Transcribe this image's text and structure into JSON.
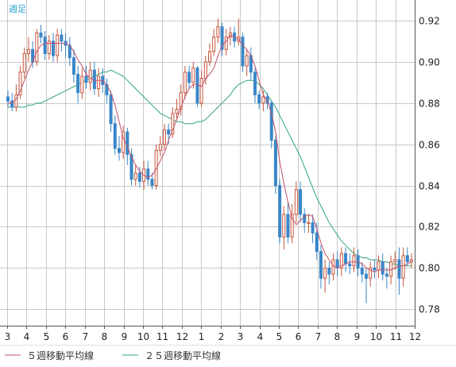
{
  "chart_data": {
    "type": "candlestick",
    "title": "週足",
    "ylim": [
      0.772,
      0.93
    ],
    "yticks": [
      0.92,
      0.9,
      0.88,
      0.86,
      0.84,
      0.82,
      0.8,
      0.78
    ],
    "xticks": [
      "3",
      "4",
      "5",
      "6",
      "7",
      "8",
      "9",
      "10",
      "11",
      "12",
      "1",
      "2",
      "3",
      "4",
      "5",
      "6",
      "7",
      "8",
      "9",
      "10",
      "11",
      "12"
    ],
    "grid": true,
    "legend": "bottom-left",
    "colors": {
      "up": "#c8553d",
      "down": "#3a86c8",
      "ma5": "#c0506a",
      "ma25": "#30a57a",
      "grid": "#c8c8c8",
      "axis": "#555555"
    },
    "series": [
      {
        "name": "５週移動平均線",
        "color": "#c0506a"
      },
      {
        "name": "２５週移動平均線",
        "color": "#30a57a"
      }
    ],
    "candles": [
      [
        0.883,
        0.881,
        0.886,
        0.878
      ],
      [
        0.881,
        0.878,
        0.885,
        0.876
      ],
      [
        0.878,
        0.884,
        0.889,
        0.876
      ],
      [
        0.884,
        0.895,
        0.898,
        0.882
      ],
      [
        0.895,
        0.904,
        0.907,
        0.892
      ],
      [
        0.904,
        0.906,
        0.912,
        0.9
      ],
      [
        0.906,
        0.9,
        0.91,
        0.897
      ],
      [
        0.9,
        0.914,
        0.916,
        0.898
      ],
      [
        0.914,
        0.912,
        0.918,
        0.909
      ],
      [
        0.912,
        0.904,
        0.915,
        0.901
      ],
      [
        0.904,
        0.91,
        0.913,
        0.901
      ],
      [
        0.91,
        0.903,
        0.914,
        0.9
      ],
      [
        0.903,
        0.913,
        0.916,
        0.9
      ],
      [
        0.913,
        0.91,
        0.916,
        0.905
      ],
      [
        0.91,
        0.908,
        0.914,
        0.902
      ],
      [
        0.908,
        0.902,
        0.912,
        0.898
      ],
      [
        0.902,
        0.894,
        0.906,
        0.89
      ],
      [
        0.894,
        0.885,
        0.898,
        0.88
      ],
      [
        0.885,
        0.893,
        0.897,
        0.882
      ],
      [
        0.893,
        0.89,
        0.898,
        0.887
      ],
      [
        0.89,
        0.896,
        0.9,
        0.886
      ],
      [
        0.896,
        0.887,
        0.9,
        0.884
      ],
      [
        0.887,
        0.893,
        0.897,
        0.883
      ],
      [
        0.893,
        0.889,
        0.897,
        0.885
      ],
      [
        0.889,
        0.884,
        0.892,
        0.88
      ],
      [
        0.884,
        0.87,
        0.886,
        0.866
      ],
      [
        0.87,
        0.858,
        0.874,
        0.855
      ],
      [
        0.858,
        0.856,
        0.864,
        0.852
      ],
      [
        0.856,
        0.866,
        0.869,
        0.853
      ],
      [
        0.866,
        0.855,
        0.868,
        0.85
      ],
      [
        0.855,
        0.843,
        0.858,
        0.84
      ],
      [
        0.843,
        0.846,
        0.85,
        0.84
      ],
      [
        0.846,
        0.842,
        0.849,
        0.839
      ],
      [
        0.842,
        0.848,
        0.852,
        0.838
      ],
      [
        0.848,
        0.843,
        0.852,
        0.84
      ],
      [
        0.843,
        0.84,
        0.846,
        0.838
      ],
      [
        0.84,
        0.857,
        0.86,
        0.838
      ],
      [
        0.857,
        0.86,
        0.864,
        0.854
      ],
      [
        0.86,
        0.867,
        0.87,
        0.857
      ],
      [
        0.867,
        0.865,
        0.87,
        0.86
      ],
      [
        0.865,
        0.875,
        0.878,
        0.863
      ],
      [
        0.875,
        0.877,
        0.882,
        0.872
      ],
      [
        0.877,
        0.885,
        0.889,
        0.874
      ],
      [
        0.885,
        0.895,
        0.898,
        0.882
      ],
      [
        0.895,
        0.89,
        0.898,
        0.887
      ],
      [
        0.89,
        0.897,
        0.9,
        0.887
      ],
      [
        0.897,
        0.88,
        0.898,
        0.878
      ],
      [
        0.88,
        0.892,
        0.896,
        0.878
      ],
      [
        0.892,
        0.9,
        0.903,
        0.889
      ],
      [
        0.9,
        0.905,
        0.909,
        0.898
      ],
      [
        0.905,
        0.912,
        0.916,
        0.903
      ],
      [
        0.912,
        0.917,
        0.921,
        0.909
      ],
      [
        0.917,
        0.906,
        0.919,
        0.903
      ],
      [
        0.906,
        0.912,
        0.916,
        0.903
      ],
      [
        0.912,
        0.914,
        0.917,
        0.908
      ],
      [
        0.914,
        0.91,
        0.917,
        0.907
      ],
      [
        0.91,
        0.912,
        0.921,
        0.908
      ],
      [
        0.912,
        0.898,
        0.914,
        0.895
      ],
      [
        0.898,
        0.903,
        0.906,
        0.893
      ],
      [
        0.903,
        0.895,
        0.907,
        0.891
      ],
      [
        0.895,
        0.884,
        0.897,
        0.88
      ],
      [
        0.884,
        0.88,
        0.886,
        0.877
      ],
      [
        0.88,
        0.883,
        0.886,
        0.876
      ],
      [
        0.883,
        0.88,
        0.885,
        0.877
      ],
      [
        0.88,
        0.862,
        0.881,
        0.858
      ],
      [
        0.862,
        0.84,
        0.864,
        0.836
      ],
      [
        0.84,
        0.815,
        0.843,
        0.812
      ],
      [
        0.815,
        0.826,
        0.83,
        0.809
      ],
      [
        0.826,
        0.815,
        0.832,
        0.812
      ],
      [
        0.815,
        0.826,
        0.831,
        0.812
      ],
      [
        0.826,
        0.838,
        0.842,
        0.822
      ],
      [
        0.838,
        0.826,
        0.842,
        0.822
      ],
      [
        0.826,
        0.822,
        0.829,
        0.817
      ],
      [
        0.822,
        0.822,
        0.826,
        0.817
      ],
      [
        0.822,
        0.817,
        0.826,
        0.812
      ],
      [
        0.817,
        0.808,
        0.822,
        0.804
      ],
      [
        0.808,
        0.795,
        0.811,
        0.79
      ],
      [
        0.795,
        0.8,
        0.804,
        0.788
      ],
      [
        0.8,
        0.797,
        0.803,
        0.792
      ],
      [
        0.797,
        0.804,
        0.807,
        0.794
      ],
      [
        0.804,
        0.8,
        0.808,
        0.796
      ],
      [
        0.8,
        0.807,
        0.81,
        0.796
      ],
      [
        0.807,
        0.802,
        0.81,
        0.798
      ],
      [
        0.802,
        0.801,
        0.807,
        0.797
      ],
      [
        0.801,
        0.806,
        0.81,
        0.798
      ],
      [
        0.806,
        0.8,
        0.809,
        0.796
      ],
      [
        0.8,
        0.797,
        0.803,
        0.793
      ],
      [
        0.797,
        0.795,
        0.8,
        0.783
      ],
      [
        0.795,
        0.8,
        0.803,
        0.791
      ],
      [
        0.8,
        0.799,
        0.804,
        0.795
      ],
      [
        0.799,
        0.803,
        0.806,
        0.795
      ],
      [
        0.803,
        0.797,
        0.807,
        0.794
      ],
      [
        0.797,
        0.796,
        0.8,
        0.79
      ],
      [
        0.796,
        0.803,
        0.806,
        0.792
      ],
      [
        0.803,
        0.804,
        0.808,
        0.799
      ],
      [
        0.804,
        0.795,
        0.81,
        0.787
      ],
      [
        0.795,
        0.806,
        0.81,
        0.791
      ],
      [
        0.806,
        0.803,
        0.81,
        0.801
      ],
      [
        0.803,
        0.804,
        0.807,
        0.8
      ]
    ],
    "ma5": [
      0.88,
      0.88,
      0.882,
      0.886,
      0.891,
      0.896,
      0.9,
      0.905,
      0.908,
      0.909,
      0.909,
      0.909,
      0.909,
      0.909,
      0.909,
      0.908,
      0.905,
      0.901,
      0.898,
      0.894,
      0.892,
      0.891,
      0.891,
      0.891,
      0.889,
      0.885,
      0.879,
      0.871,
      0.863,
      0.859,
      0.854,
      0.85,
      0.847,
      0.845,
      0.844,
      0.845,
      0.848,
      0.852,
      0.856,
      0.862,
      0.867,
      0.872,
      0.878,
      0.883,
      0.887,
      0.889,
      0.889,
      0.888,
      0.892,
      0.894,
      0.897,
      0.903,
      0.908,
      0.91,
      0.913,
      0.912,
      0.911,
      0.908,
      0.906,
      0.903,
      0.898,
      0.891,
      0.884,
      0.881,
      0.875,
      0.866,
      0.852,
      0.841,
      0.832,
      0.824,
      0.821,
      0.823,
      0.825,
      0.826,
      0.825,
      0.819,
      0.812,
      0.807,
      0.804,
      0.801,
      0.8,
      0.801,
      0.802,
      0.803,
      0.803,
      0.803,
      0.802,
      0.8,
      0.799,
      0.798,
      0.799,
      0.799,
      0.799,
      0.799,
      0.8,
      0.801,
      0.801,
      0.802,
      0.803
    ],
    "ma25": [
      0.878,
      0.878,
      0.878,
      0.878,
      0.878,
      0.879,
      0.879,
      0.88,
      0.88,
      0.881,
      0.882,
      0.883,
      0.884,
      0.885,
      0.886,
      0.887,
      0.888,
      0.889,
      0.89,
      0.891,
      0.892,
      0.893,
      0.894,
      0.895,
      0.895,
      0.896,
      0.895,
      0.894,
      0.893,
      0.891,
      0.889,
      0.887,
      0.885,
      0.883,
      0.881,
      0.879,
      0.877,
      0.875,
      0.874,
      0.873,
      0.872,
      0.871,
      0.871,
      0.87,
      0.87,
      0.87,
      0.871,
      0.871,
      0.872,
      0.874,
      0.876,
      0.878,
      0.88,
      0.882,
      0.884,
      0.887,
      0.889,
      0.89,
      0.891,
      0.891,
      0.891,
      0.889,
      0.887,
      0.884,
      0.881,
      0.878,
      0.874,
      0.87,
      0.866,
      0.862,
      0.858,
      0.854,
      0.849,
      0.844,
      0.839,
      0.834,
      0.83,
      0.826,
      0.822,
      0.819,
      0.816,
      0.813,
      0.811,
      0.809,
      0.807,
      0.806,
      0.805,
      0.805,
      0.804,
      0.804,
      0.804,
      0.803,
      0.803,
      0.802,
      0.802,
      0.801,
      0.801,
      0.801,
      0.801
    ]
  }
}
